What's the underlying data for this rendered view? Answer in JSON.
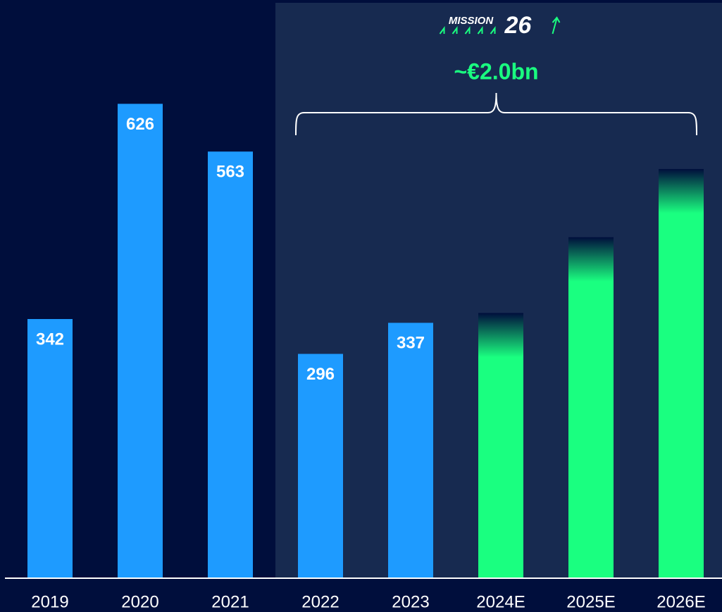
{
  "chart_data": {
    "type": "bar",
    "categories": [
      "2019",
      "2020",
      "2021",
      "2022",
      "2023",
      "2024E",
      "2025E",
      "2026E"
    ],
    "values": [
      342,
      626,
      563,
      296,
      337,
      350,
      450,
      540
    ],
    "value_labels": [
      "342",
      "626",
      "563",
      "296",
      "337",
      null,
      null,
      null
    ],
    "colors": [
      "#1e9bff",
      "#1e9bff",
      "#1e9bff",
      "#1e9bff",
      "#1e9bff",
      "#1aff80",
      "#1aff80",
      "#1aff80"
    ],
    "ylim": [
      0,
      700
    ],
    "highlight_from": "2022",
    "annotation": "~€2.0bn",
    "logo": {
      "word": "MISSION",
      "number": "26"
    }
  }
}
